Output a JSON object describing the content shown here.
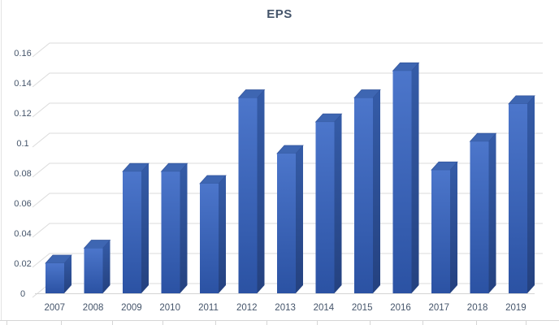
{
  "window": {
    "app_context": "spreadsheet-embedded-chart",
    "background_color": "#ffffff"
  },
  "chart_data": {
    "type": "bar",
    "style": "3d-column",
    "title": "EPS",
    "categories": [
      "2007",
      "2008",
      "2009",
      "2010",
      "2011",
      "2012",
      "2013",
      "2014",
      "2015",
      "2016",
      "2017",
      "2018",
      "2019"
    ],
    "values": [
      0.02,
      0.03,
      0.081,
      0.081,
      0.073,
      0.13,
      0.093,
      0.114,
      0.13,
      0.148,
      0.082,
      0.101,
      0.126
    ],
    "xlabel": "",
    "ylabel": "",
    "ylim": [
      0,
      0.16
    ],
    "y_tick_labels": [
      "0",
      "0.02",
      "0.04",
      "0.06",
      "0.08",
      "0.1",
      "0.12",
      "0.14",
      "0.16"
    ],
    "y_tick_values": [
      0,
      0.02,
      0.04,
      0.06,
      0.08,
      0.1,
      0.12,
      0.14,
      0.16
    ],
    "grid": true,
    "legend_position": "none",
    "colors": {
      "bar_front_top": "#4C76CB",
      "bar_front_bottom": "#2B52A3",
      "bar_side_top": "#355CA8",
      "bar_side_bottom": "#24417F",
      "bar_top_face": "#3E66B2",
      "bar_top_edge": "#33559C",
      "gridline": "#DBDBDB",
      "axis_line": "#D4D4D4",
      "title_text": "#44546A",
      "axis_text": "#44546A",
      "worksheet_border": "#D6D6D6"
    }
  }
}
